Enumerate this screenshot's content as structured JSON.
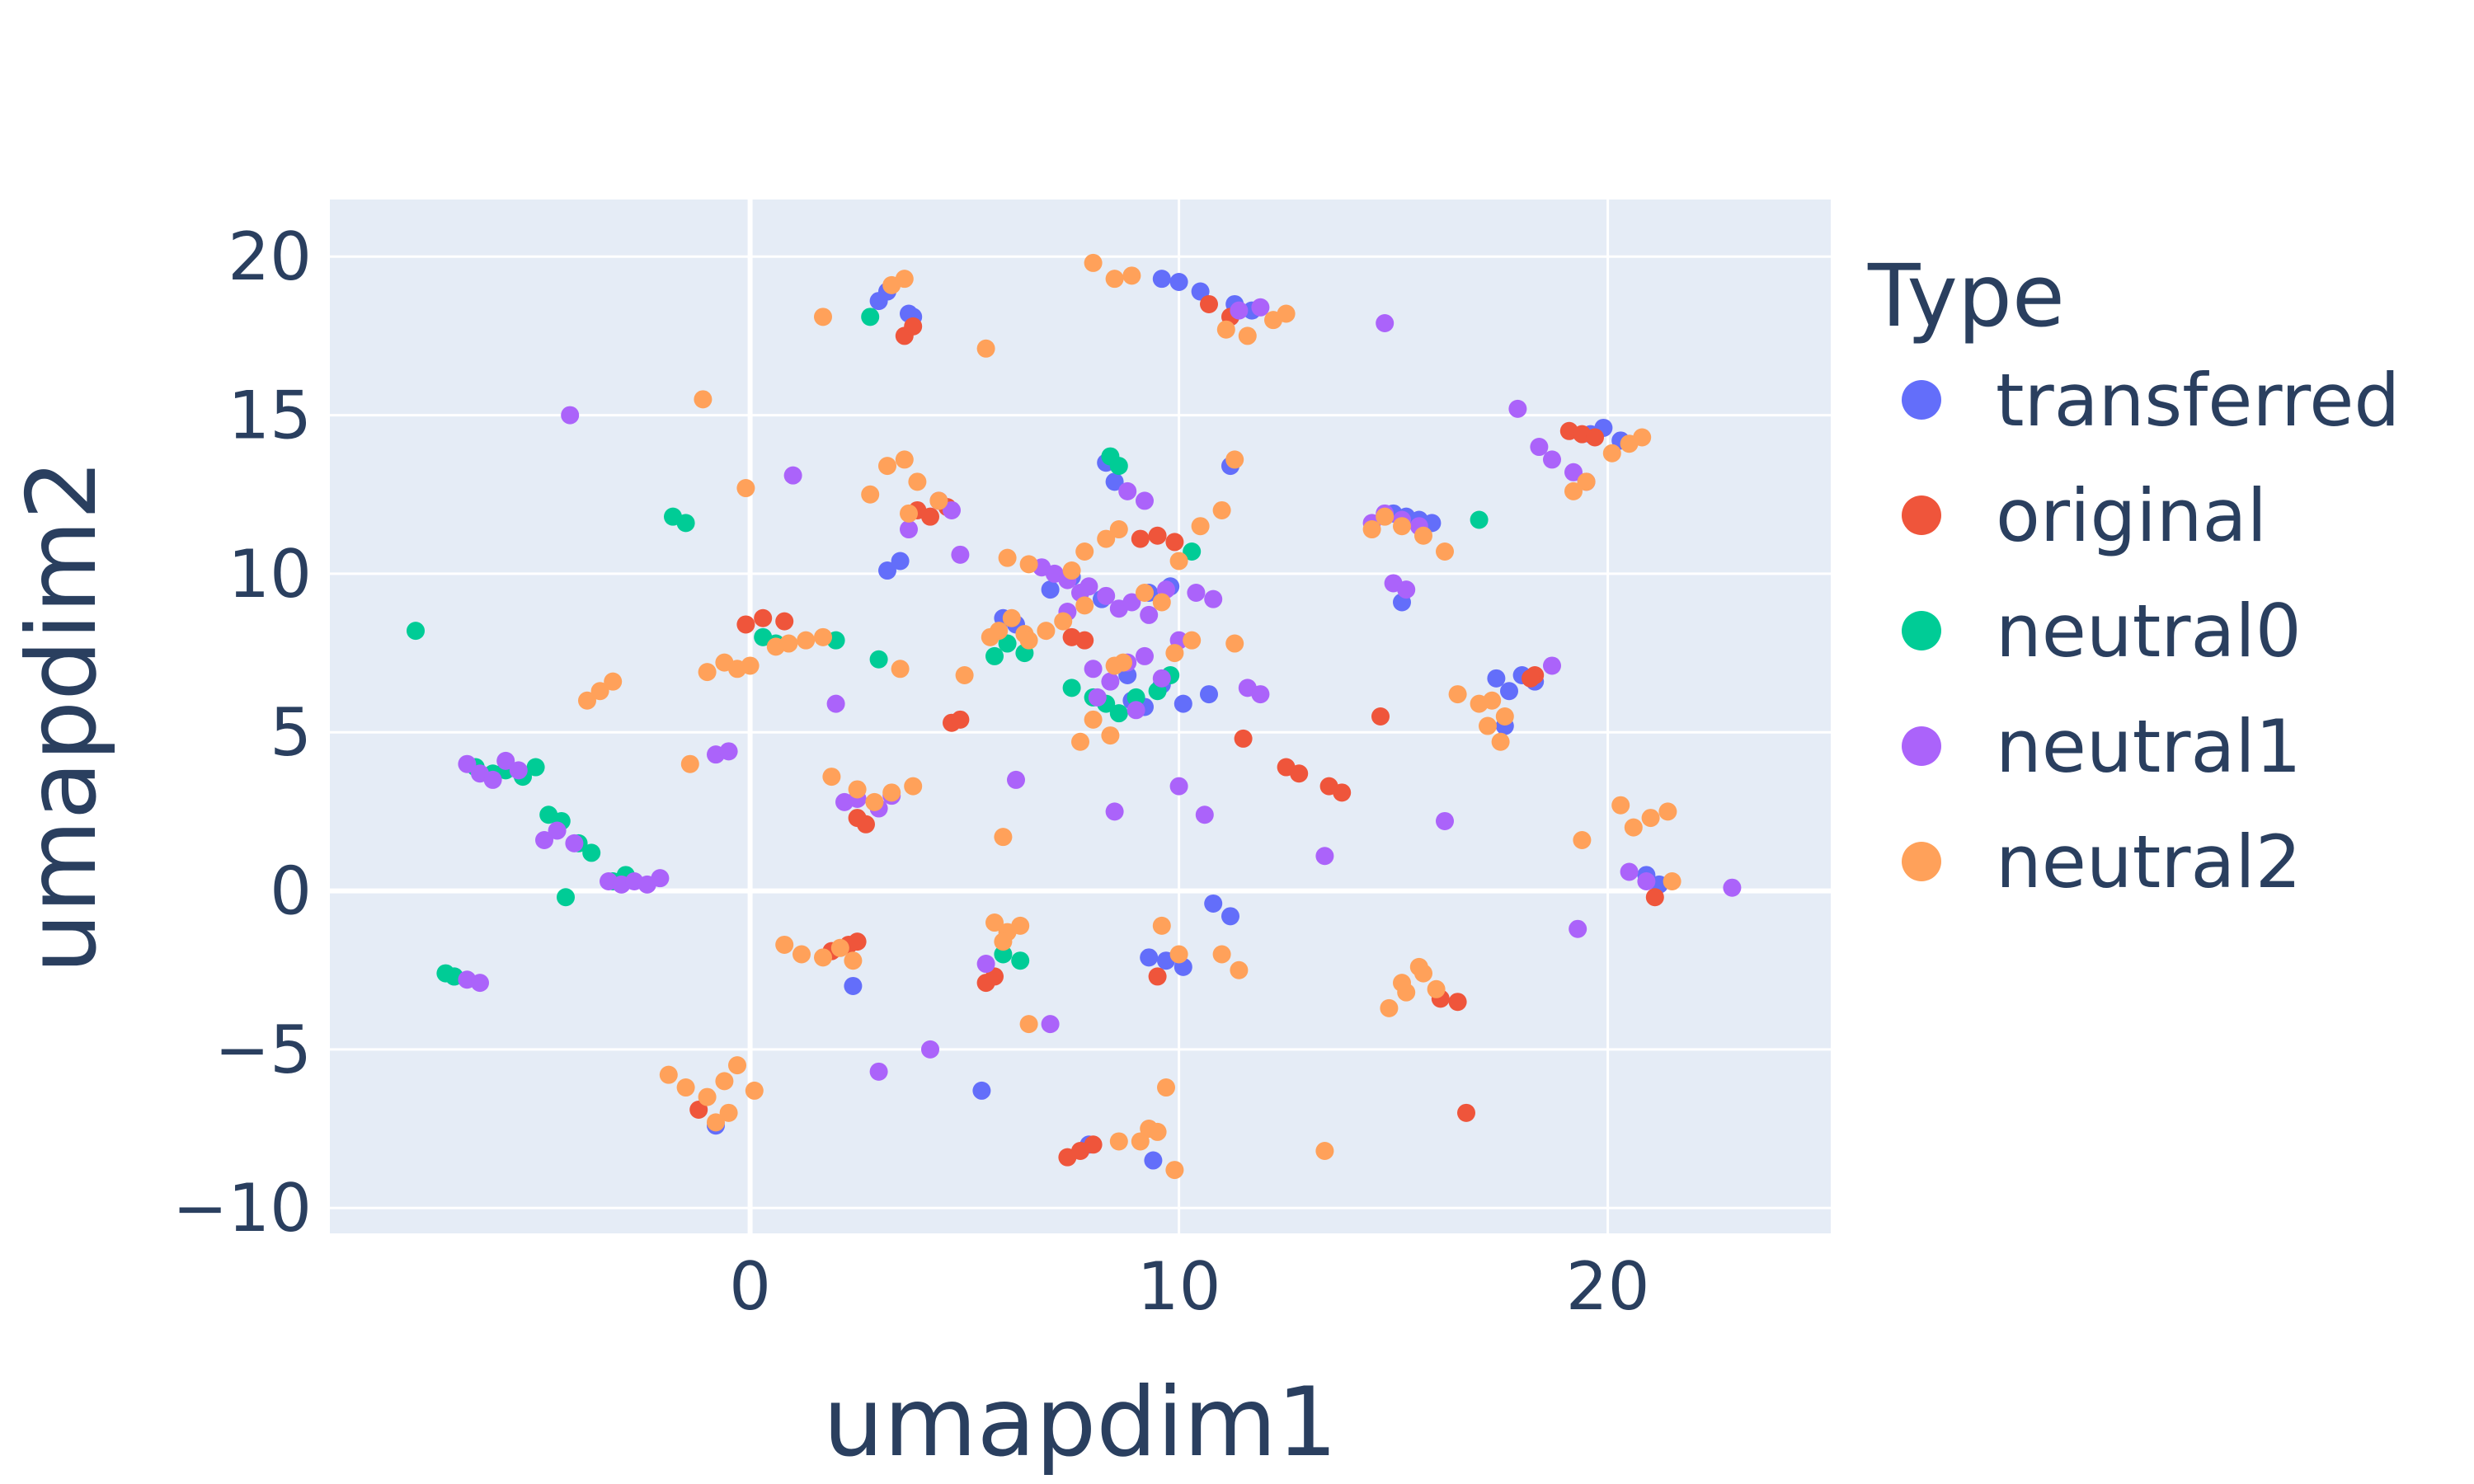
{
  "chart_data": {
    "type": "scatter",
    "xlabel": "umapdim1",
    "ylabel": "umapdim2",
    "xlim": [
      -9.8,
      25.2
    ],
    "ylim": [
      -10.8,
      21.8
    ],
    "xticks": [
      0,
      10,
      20
    ],
    "yticks": [
      -10,
      -5,
      0,
      5,
      10,
      15,
      20
    ],
    "grid": true,
    "plot_bg": "#e5ecf6",
    "legend": {
      "title": "Type",
      "placement": "right"
    },
    "series": [
      {
        "name": "transferred",
        "color": "#636efa",
        "x": [
          3.0,
          3.2,
          3.7,
          3.8,
          9.6,
          10.0,
          10.5,
          11.3,
          11.7,
          3.2,
          3.5,
          5.9,
          6.2,
          8.3,
          8.5,
          8.8,
          8.9,
          9.2,
          9.6,
          10.1,
          10.7,
          7.0,
          7.5,
          8.2,
          9.3,
          9.8,
          11.2,
          17.4,
          17.7,
          18.0,
          18.3,
          17.6,
          19.6,
          19.9,
          20.3,
          15.0,
          15.3,
          15.6,
          15.9,
          15.2,
          20.9,
          21.2,
          5.4,
          7.9,
          9.4,
          9.7,
          10.1,
          10.8,
          11.2,
          9.3,
          -0.8,
          2.4,
          -6.9
        ],
        "y": [
          18.6,
          18.9,
          18.2,
          18.1,
          19.3,
          19.2,
          18.9,
          18.5,
          18.3,
          10.1,
          10.4,
          8.6,
          8.4,
          13.5,
          12.9,
          6.8,
          6.0,
          5.8,
          6.5,
          5.9,
          6.2,
          9.5,
          9.9,
          9.2,
          9.4,
          9.6,
          13.4,
          6.7,
          6.3,
          6.8,
          6.6,
          5.2,
          14.4,
          14.6,
          14.2,
          11.9,
          11.8,
          11.7,
          11.6,
          9.1,
          0.5,
          0.2,
          -6.3,
          -8.0,
          -8.5,
          -2.2,
          -2.4,
          -0.4,
          -0.8,
          -2.1,
          -7.4,
          -3.0,
          -2.7
        ]
      },
      {
        "name": "original",
        "color": "#ef553b",
        "x": [
          3.6,
          3.8,
          10.7,
          11.2,
          -0.1,
          0.3,
          0.8,
          4.7,
          4.9,
          3.9,
          4.2,
          4.6,
          7.5,
          7.8,
          9.1,
          9.5,
          9.9,
          11.5,
          12.5,
          12.8,
          13.5,
          13.8,
          2.7,
          2.5,
          1.9,
          2.3,
          2.5,
          5.5,
          5.7,
          9.5,
          7.4,
          7.7,
          8.0,
          16.1,
          16.5,
          16.7,
          19.1,
          19.4,
          19.7,
          21.1,
          18.3,
          18.2,
          14.7,
          -1.2
        ],
        "y": [
          17.5,
          17.8,
          18.5,
          18.1,
          8.4,
          8.6,
          8.5,
          5.3,
          5.4,
          12.0,
          11.8,
          12.1,
          8.0,
          7.9,
          11.1,
          11.2,
          11.0,
          4.8,
          3.9,
          3.7,
          3.3,
          3.1,
          2.1,
          2.3,
          -1.9,
          -1.7,
          -1.6,
          -2.9,
          -2.7,
          -2.7,
          -8.4,
          -8.2,
          -8.0,
          -3.4,
          -3.5,
          -7.0,
          14.5,
          14.4,
          14.3,
          -0.2,
          6.8,
          6.7,
          5.5,
          -6.9
        ]
      },
      {
        "name": "neutral0",
        "color": "#00cc96",
        "x": [
          2.8,
          -7.8,
          -1.8,
          -1.5,
          0.3,
          0.6,
          6.0,
          6.4,
          2.0,
          3.0,
          8.4,
          8.6,
          7.5,
          8.0,
          8.3,
          8.6,
          9.0,
          9.5,
          9.8,
          10.3,
          17.0,
          -6.4,
          -6.0,
          -5.7,
          -5.3,
          -5.0,
          -4.7,
          -4.4,
          -4.0,
          -3.7,
          -3.2,
          -2.9,
          -4.3,
          -7.1,
          -6.9,
          5.9,
          6.3,
          5.7
        ],
        "y": [
          18.1,
          8.2,
          11.8,
          11.6,
          8.0,
          7.8,
          7.8,
          7.5,
          7.9,
          7.3,
          13.7,
          13.4,
          6.4,
          6.1,
          5.9,
          5.6,
          6.1,
          6.3,
          6.8,
          10.7,
          11.7,
          3.9,
          3.7,
          3.8,
          3.6,
          3.9,
          2.4,
          2.2,
          1.5,
          1.2,
          0.3,
          0.5,
          -0.2,
          -2.6,
          -2.7,
          -2.0,
          -2.2,
          7.4
        ]
      },
      {
        "name": "neutral1",
        "color": "#ab63fa",
        "x": [
          11.4,
          11.9,
          14.8,
          -4.2,
          1.0,
          4.4,
          4.7,
          3.7,
          2.0,
          4.9,
          6.8,
          7.1,
          7.4,
          7.9,
          8.3,
          8.6,
          8.9,
          9.3,
          9.7,
          8.0,
          8.4,
          8.8,
          9.2,
          9.6,
          10.0,
          8.8,
          9.2,
          10.4,
          10.8,
          11.6,
          11.9,
          14.5,
          14.8,
          15.2,
          15.6,
          15.0,
          15.3,
          17.9,
          18.4,
          18.7,
          19.2,
          19.5,
          18.7,
          16.2,
          -6.6,
          -6.3,
          -6.0,
          -5.7,
          -5.4,
          -4.8,
          -4.5,
          -4.1,
          -3.3,
          -3.0,
          -2.7,
          -2.4,
          -2.1,
          -6.6,
          -6.3,
          -0.8,
          -0.5,
          2.2,
          2.5,
          3.0,
          3.3,
          6.2,
          7.4,
          7.7,
          8.5,
          10.0,
          10.6,
          13.4,
          20.5,
          20.9,
          22.9,
          19.3,
          5.5,
          7.0,
          3.0,
          4.2,
          8.1,
          9.0
        ],
        "y": [
          18.3,
          18.4,
          17.9,
          15.0,
          13.1,
          12.3,
          12.0,
          11.4,
          5.9,
          10.6,
          10.2,
          10.0,
          9.8,
          9.6,
          9.3,
          8.9,
          9.1,
          8.7,
          9.5,
          7.0,
          6.6,
          7.2,
          7.4,
          6.7,
          7.9,
          12.6,
          12.3,
          9.4,
          9.2,
          6.4,
          6.2,
          11.6,
          11.9,
          11.7,
          11.5,
          9.7,
          9.5,
          15.2,
          14.0,
          13.6,
          13.2,
          12.9,
          7.1,
          2.2,
          4.0,
          3.7,
          3.5,
          4.1,
          3.8,
          1.6,
          1.9,
          1.5,
          0.3,
          0.2,
          0.3,
          0.2,
          0.4,
          -2.8,
          -2.9,
          4.3,
          4.4,
          2.8,
          2.9,
          2.6,
          3.0,
          3.5,
          8.8,
          9.4,
          2.5,
          3.3,
          2.4,
          1.1,
          0.6,
          0.3,
          0.1,
          -1.2,
          -2.3,
          -4.2,
          -5.7,
          -5.0,
          6.1,
          5.7
        ]
      },
      {
        "name": "neutral2",
        "color": "#ffa15a",
        "x": [
          3.3,
          3.6,
          1.7,
          5.5,
          8.0,
          8.5,
          8.9,
          11.1,
          11.6,
          12.2,
          12.5,
          -1.1,
          -0.1,
          2.8,
          3.2,
          3.6,
          3.9,
          3.7,
          4.4,
          3.5,
          5.0,
          6.0,
          6.5,
          6.1,
          5.8,
          5.6,
          6.4,
          7.5,
          7.8,
          8.3,
          8.6,
          9.2,
          9.6,
          10.0,
          10.5,
          11.0,
          11.3,
          10.3,
          9.9,
          8.7,
          8.5,
          8.0,
          8.4,
          7.7,
          11.3,
          -3.8,
          -3.5,
          -3.2,
          -1.0,
          -0.6,
          -0.3,
          0.0,
          0.6,
          0.9,
          1.3,
          1.7,
          -1.4,
          1.9,
          2.5,
          2.9,
          3.3,
          3.8,
          5.9,
          14.5,
          14.8,
          15.2,
          15.7,
          16.2,
          17.0,
          17.3,
          17.6,
          17.2,
          17.5,
          16.5,
          19.2,
          19.5,
          20.1,
          20.5,
          20.8,
          20.3,
          19.4,
          20.6,
          21.0,
          21.4,
          21.5,
          8.6,
          9.3,
          11.0,
          11.4,
          0.8,
          1.2,
          1.7,
          2.1,
          2.4,
          5.7,
          6.0,
          6.3,
          5.9,
          6.5,
          -1.9,
          -1.5,
          -1.0,
          -0.6,
          -0.3,
          0.1,
          -0.5,
          -0.8,
          9.1,
          9.5,
          9.7,
          9.9,
          9.6,
          10.0,
          13.4,
          14.9,
          15.3,
          15.7,
          16.0,
          15.2,
          15.6,
          6.5,
          6.9,
          7.3,
          7.8
        ],
        "y": [
          19.1,
          19.3,
          18.1,
          17.1,
          19.8,
          19.3,
          19.4,
          17.7,
          17.5,
          18.0,
          18.2,
          15.5,
          12.7,
          12.5,
          13.4,
          13.6,
          12.9,
          11.9,
          12.3,
          7.0,
          6.8,
          10.5,
          10.3,
          8.6,
          8.2,
          8.0,
          8.1,
          10.1,
          10.7,
          11.1,
          11.4,
          9.4,
          9.1,
          10.4,
          11.5,
          12.0,
          13.6,
          7.9,
          7.5,
          7.2,
          7.1,
          5.4,
          4.9,
          4.7,
          7.8,
          6.0,
          6.3,
          6.6,
          6.9,
          7.2,
          7.0,
          7.1,
          7.7,
          7.8,
          7.9,
          8.0,
          4.0,
          3.6,
          3.2,
          2.8,
          3.1,
          3.3,
          1.7,
          11.4,
          11.8,
          11.5,
          11.2,
          10.7,
          5.9,
          6.0,
          5.5,
          5.2,
          4.7,
          6.2,
          12.6,
          12.9,
          13.8,
          14.1,
          14.3,
          2.7,
          1.6,
          2.0,
          2.3,
          2.5,
          0.3,
          -7.9,
          -7.5,
          -2.0,
          -2.5,
          -1.7,
          -2.0,
          -2.1,
          -1.8,
          -2.2,
          -1.0,
          -1.3,
          -1.1,
          -1.6,
          -4.2,
          -5.8,
          -6.2,
          -6.5,
          -6.0,
          -5.5,
          -6.3,
          -7.0,
          -7.3,
          -7.9,
          -7.6,
          -6.2,
          -8.8,
          -1.1,
          -2.0,
          -8.2,
          -3.7,
          -3.2,
          -2.6,
          -3.1,
          -2.9,
          -2.4,
          7.9,
          8.2,
          8.5,
          9.0
        ]
      }
    ]
  }
}
